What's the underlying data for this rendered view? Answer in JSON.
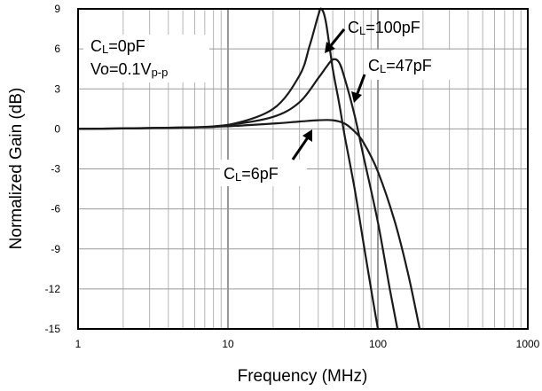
{
  "chart_data": {
    "type": "line",
    "xlabel": "Frequency (MHz)",
    "ylabel": "Normalized Gain (dB)",
    "x_scale": "log",
    "xlim": [
      1,
      1000
    ],
    "ylim": [
      -15,
      9
    ],
    "x_ticks": [
      1,
      10,
      100,
      1000
    ],
    "x_tick_labels": [
      "1",
      "10",
      "100",
      "1000"
    ],
    "y_ticks": [
      9,
      6,
      3,
      0,
      -3,
      -6,
      -9,
      -12,
      -15
    ],
    "y_tick_labels": [
      "9",
      "6",
      "3",
      "0",
      "-3",
      "-6",
      "-9",
      "-12",
      "-15"
    ],
    "grid": true,
    "series": [
      {
        "name": "CL=6pF",
        "x": [
          1,
          5,
          10,
          20,
          30,
          40,
          50,
          60,
          70,
          80,
          100,
          130,
          160,
          190
        ],
        "y": [
          0,
          0.1,
          0.2,
          0.4,
          0.55,
          0.65,
          0.65,
          0.4,
          -0.2,
          -1.0,
          -3.2,
          -7.0,
          -11.0,
          -15.0
        ]
      },
      {
        "name": "CL=47pF",
        "x": [
          1,
          5,
          10,
          20,
          30,
          40,
          45,
          50,
          55,
          60,
          70,
          80,
          100,
          120,
          135
        ],
        "y": [
          0,
          0.1,
          0.3,
          0.9,
          2.0,
          3.8,
          4.6,
          5.2,
          5.0,
          3.8,
          1.0,
          -2.0,
          -7.0,
          -12.0,
          -15.0
        ]
      },
      {
        "name": "CL=100pF",
        "x": [
          1,
          5,
          10,
          20,
          30,
          35,
          40,
          42,
          45,
          50,
          55,
          60,
          70,
          80,
          90,
          100
        ],
        "y": [
          0,
          0.1,
          0.3,
          1.5,
          4.0,
          6.2,
          8.5,
          9.0,
          8.0,
          4.5,
          2.0,
          -0.5,
          -4.5,
          -8.5,
          -12.0,
          -15.0
        ]
      }
    ],
    "annotations": {
      "cl0": {
        "main": "C",
        "sub": "L",
        "rest": "=0pF"
      },
      "vo": {
        "main": "Vo=0.1V",
        "sub": "p-p"
      },
      "cl100": {
        "main": "C",
        "sub": "L",
        "rest": "=100pF"
      },
      "cl47": {
        "main": "C",
        "sub": "L",
        "rest": "=47pF"
      },
      "cl6": {
        "main": "C",
        "sub": "L",
        "rest": "=6pF"
      }
    }
  }
}
